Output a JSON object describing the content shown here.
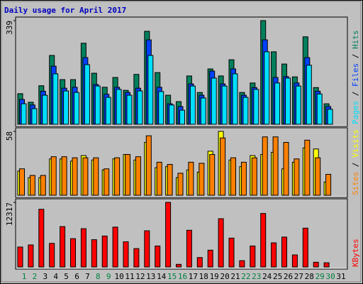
{
  "chart_data": {
    "type": "bar",
    "title": "Daily usage for April 2017",
    "categories": [
      "1",
      "2",
      "3",
      "4",
      "5",
      "6",
      "7",
      "8",
      "9",
      "10",
      "11",
      "12",
      "13",
      "14",
      "15",
      "16",
      "17",
      "18",
      "19",
      "20",
      "21",
      "22",
      "23",
      "24",
      "25",
      "26",
      "27",
      "28",
      "29",
      "30",
      "31"
    ],
    "category_colors": [
      "#008040",
      "#008040",
      "#000000",
      "#000000",
      "#000000",
      "#000000",
      "#000000",
      "#008040",
      "#008040",
      "#000000",
      "#000000",
      "#000000",
      "#000000",
      "#000000",
      "#008040",
      "#008040",
      "#000000",
      "#000000",
      "#000000",
      "#000000",
      "#000000",
      "#008040",
      "#008040",
      "#000000",
      "#000000",
      "#000000",
      "#000000",
      "#000000",
      "#008040",
      "#008040",
      "#000000"
    ],
    "legend_separator": " / ",
    "panels": [
      {
        "ylim": [
          0,
          339
        ],
        "yticks": [
          339
        ],
        "series": [
          {
            "name": "Pages",
            "color": "#00e0ff",
            "values": [
              67,
              51,
              95,
              165,
              109,
              104,
              195,
              125,
              88,
              114,
              95,
              109,
              225,
              107,
              63,
              46,
              125,
              86,
              151,
              125,
              165,
              88,
              114,
              237,
              135,
              151,
              125,
              193,
              99,
              49
            ]
          },
          {
            "name": "Files",
            "color": "#0040ff",
            "values": [
              81,
              63,
              108,
              190,
              118,
              121,
              218,
              130,
              98,
              121,
              104,
              118,
              276,
              121,
              67,
              58,
              132,
              95,
              174,
              132,
              181,
              95,
              120,
              276,
              153,
              156,
              135,
              218,
              108,
              58
            ]
          },
          {
            "name": "Hits",
            "color": "#00805c",
            "values": [
              100,
              72,
              126,
              225,
              146,
              146,
              265,
              167,
              121,
              153,
              111,
              163,
              304,
              169,
              95,
              74,
              158,
              104,
              181,
              158,
              211,
              104,
              135,
              339,
              237,
              197,
              155,
              286,
              120,
              67
            ]
          }
        ]
      },
      {
        "ylim": [
          0,
          58
        ],
        "yticks": [
          58
        ],
        "series": [
          {
            "name": "Sites",
            "color": "#ff8000",
            "values": [
              24,
              18,
              18,
              35,
              35,
              34,
              34,
              34,
              24,
              34,
              37,
              35,
              54,
              30,
              28,
              20,
              30,
              29,
              37,
              52,
              34,
              30,
              34,
              53,
              53,
              48,
              33,
              50,
              34,
              19
            ]
          },
          {
            "name": "Visits",
            "color": "#ffff00",
            "values": [
              22,
              16,
              16,
              33,
              33,
              31,
              36,
              32,
              23,
              33,
              37,
              32,
              48,
              25,
              26,
              16,
              23,
              21,
              40,
              58,
              32,
              26,
              36,
              37,
              39,
              24,
              30,
              43,
              42,
              12
            ]
          }
        ]
      },
      {
        "ylim": [
          0,
          12317
        ],
        "yticks": [
          12317
        ],
        "series": [
          {
            "name": "KBytes",
            "color": "#ff0000",
            "values": [
              3800,
              4200,
              11000,
              4500,
              7700,
              5400,
              7300,
              5200,
              5900,
              7600,
              4800,
              3500,
              6900,
              4000,
              12317,
              500,
              7000,
              1800,
              3200,
              9200,
              5500,
              1200,
              4000,
              10200,
              4600,
              5700,
              2300,
              7400,
              900,
              800
            ]
          }
        ]
      }
    ]
  }
}
